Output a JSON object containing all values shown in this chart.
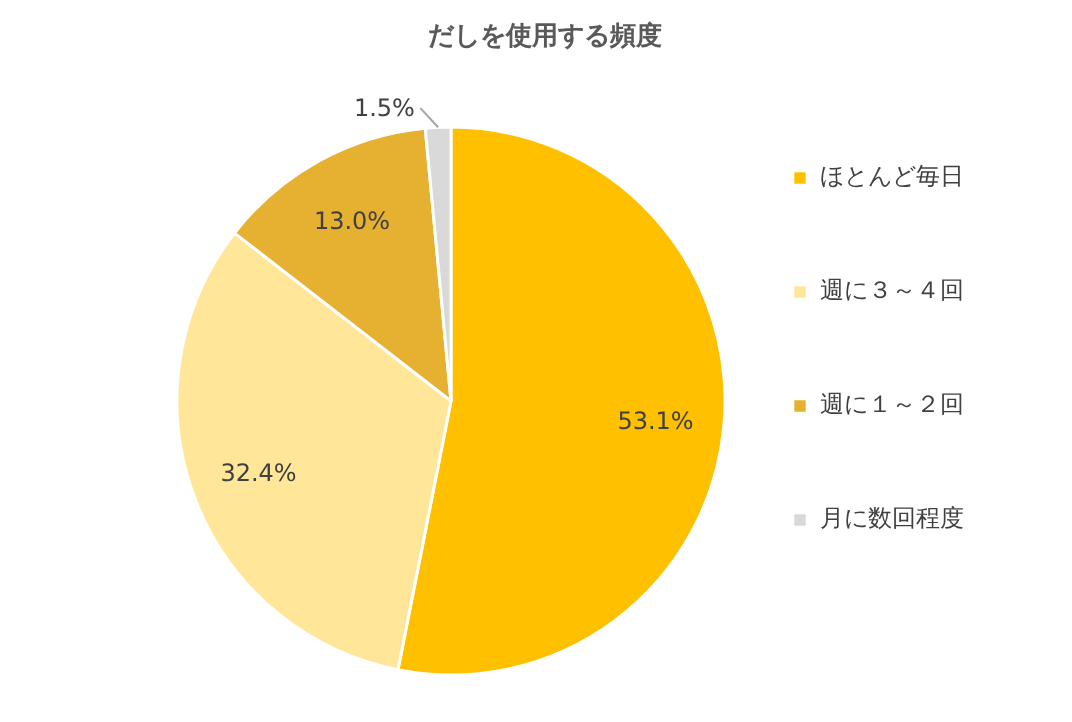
{
  "chart_data": {
    "type": "pie",
    "title": "だしを使用する頻度",
    "categories": [
      "ほとんど毎日",
      "週に３～４回",
      "週に１～２回",
      "月に数回程度"
    ],
    "values": [
      53.1,
      32.4,
      13.0,
      1.5
    ],
    "colors": [
      "#ffc000",
      "#ffe699",
      "#e6b030",
      "#d9d9d9"
    ],
    "value_labels": [
      "53.1%",
      "32.4%",
      "13.0%",
      "1.5%"
    ],
    "legend": "right"
  }
}
